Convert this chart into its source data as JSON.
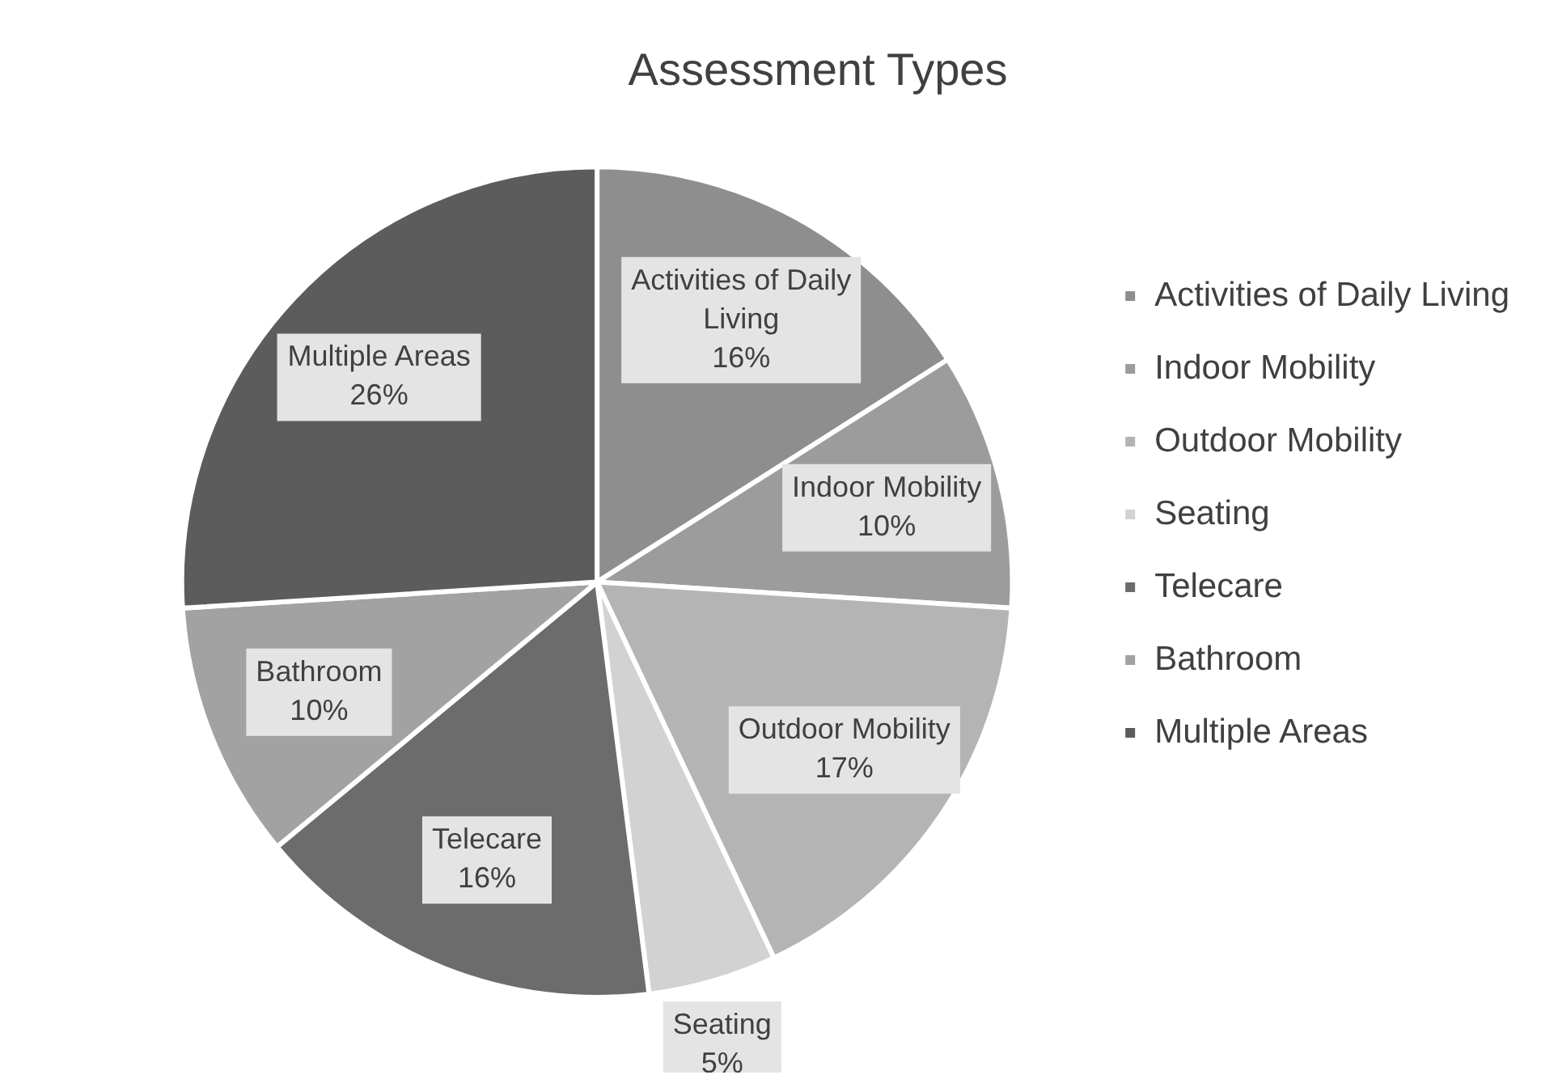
{
  "chart_data": {
    "type": "pie",
    "title": "Assessment Types",
    "categories": [
      "Activities of Daily Living",
      "Indoor Mobility",
      "Outdoor Mobility",
      "Seating",
      "Telecare",
      "Bathroom",
      "Multiple Areas"
    ],
    "values": [
      16,
      10,
      17,
      5,
      16,
      10,
      26
    ],
    "value_labels": [
      "16%",
      "10%",
      "17%",
      "5%",
      "16%",
      "10%",
      "26%"
    ],
    "colors": [
      "#8e8e8e",
      "#9c9c9c",
      "#b4b4b4",
      "#d2d2d2",
      "#6c6c6c",
      "#a2a2a2",
      "#5c5c5c"
    ],
    "legend": "right"
  }
}
